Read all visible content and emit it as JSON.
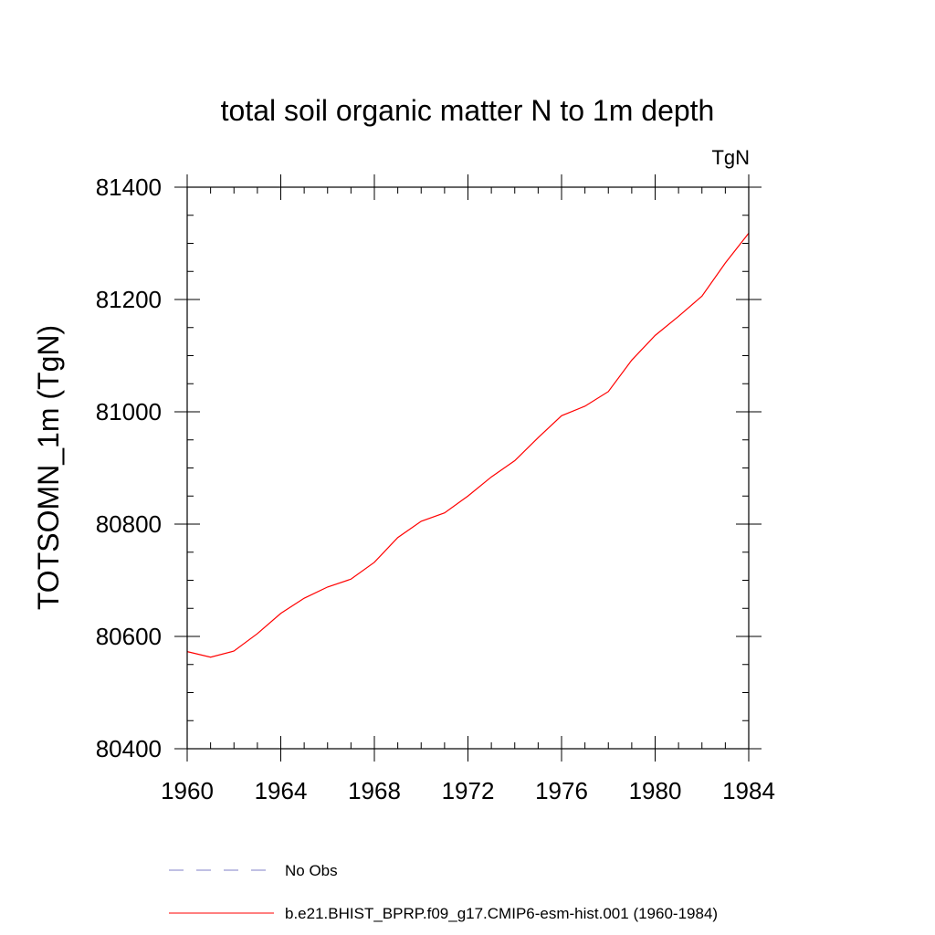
{
  "chart_data": {
    "type": "line",
    "title": "total soil organic matter N to 1m depth",
    "units_label": "TgN",
    "ylabel": "TOTSOMN_1m  (TgN)",
    "xlabel": "",
    "xlim": [
      1960,
      1984
    ],
    "ylim": [
      80400,
      81400
    ],
    "x_ticks": [
      1960,
      1964,
      1968,
      1972,
      1976,
      1980,
      1984
    ],
    "y_ticks": [
      80400,
      80600,
      80800,
      81000,
      81200,
      81400
    ],
    "x_minor_step": 1,
    "y_minor_step": 50,
    "grid": false,
    "legend_position": "bottom",
    "legend": [
      {
        "label": "No Obs",
        "color": "#8080c8",
        "dash": "dashed"
      },
      {
        "label": "b.e21.BHIST_BPRP.f09_g17.CMIP6-esm-hist.001 (1960-1984)",
        "color": "#ff0000",
        "dash": "solid"
      }
    ],
    "series": [
      {
        "name": "b.e21.BHIST_BPRP.f09_g17.CMIP6-esm-hist.001 (1960-1984)",
        "color": "#ff0000",
        "x": [
          1960,
          1961,
          1962,
          1963,
          1964,
          1965,
          1966,
          1967,
          1968,
          1969,
          1970,
          1971,
          1972,
          1973,
          1974,
          1975,
          1976,
          1977,
          1978,
          1979,
          1980,
          1981,
          1982,
          1983,
          1984
        ],
        "values": [
          80573,
          80563,
          80574,
          80605,
          80641,
          80668,
          80688,
          80702,
          80732,
          80776,
          80805,
          80820,
          80850,
          80884,
          80913,
          80954,
          80993,
          81010,
          81036,
          81092,
          81136,
          81170,
          81206,
          81265,
          81318
        ]
      }
    ]
  }
}
